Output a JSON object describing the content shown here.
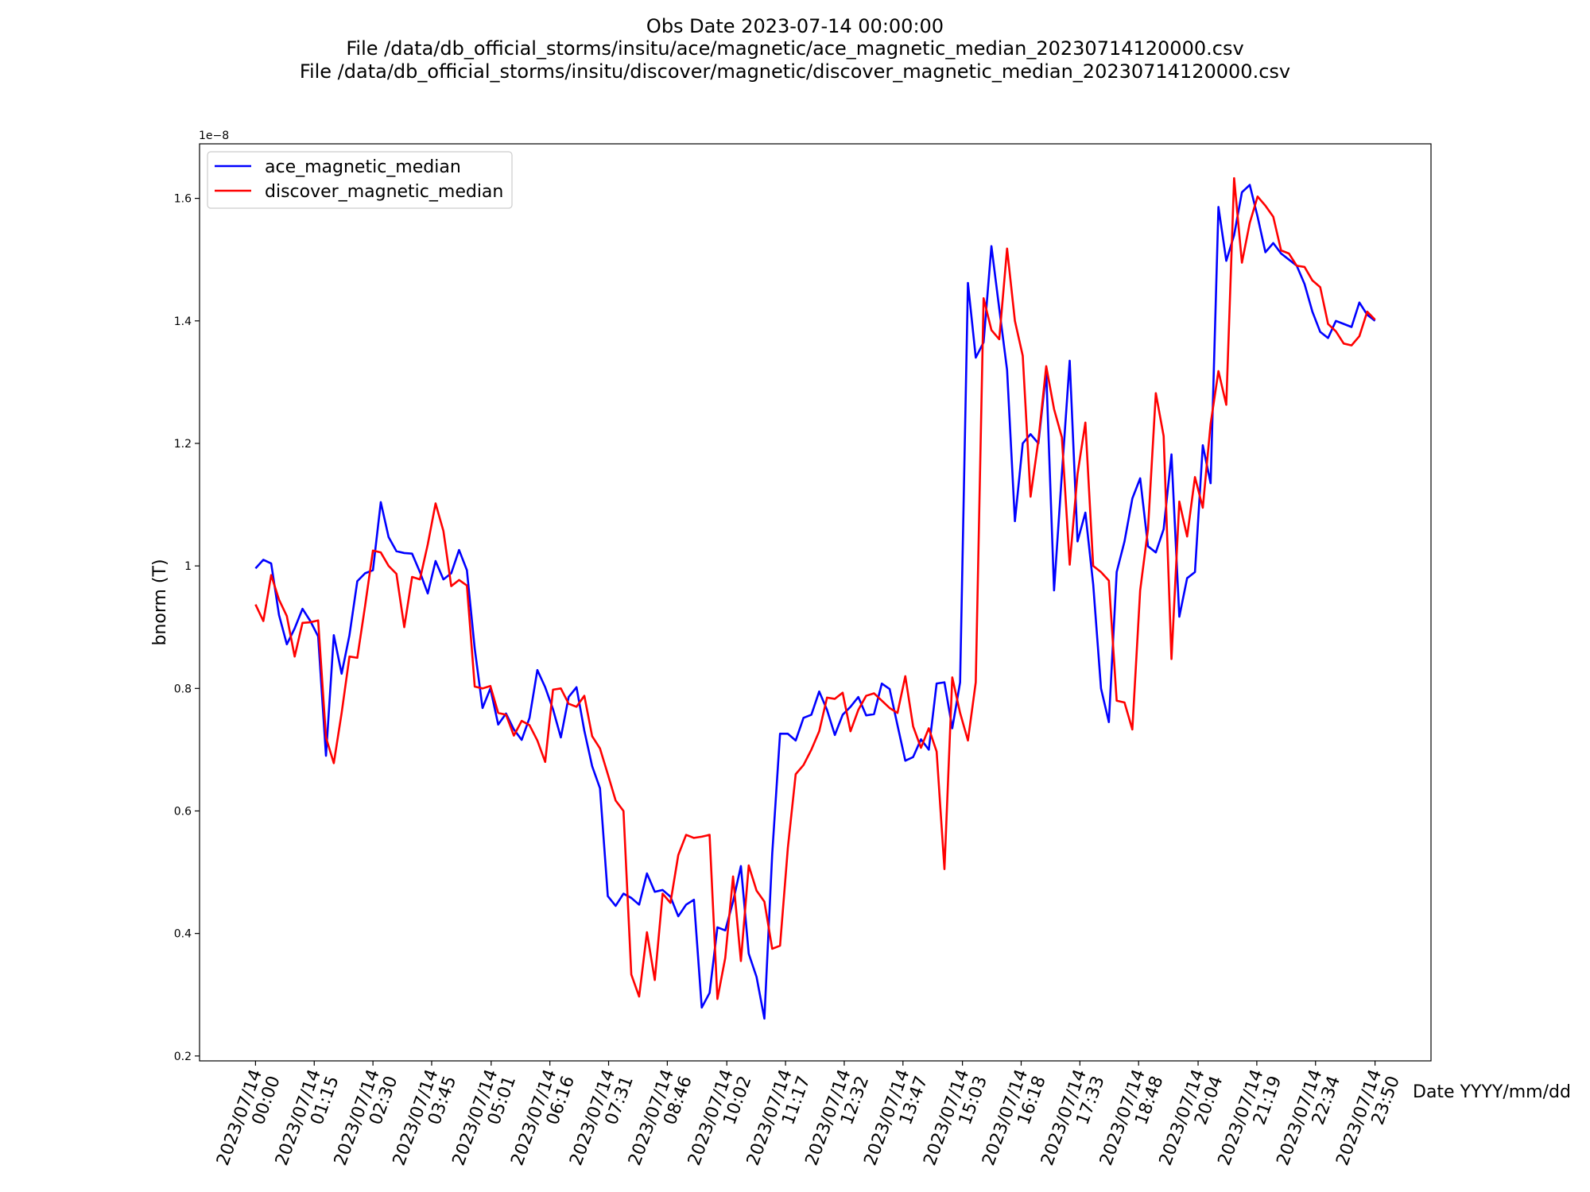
{
  "chart_data": {
    "type": "line",
    "title": [
      "Obs Date 2023-07-14 00:00:00",
      "File /data/db_official_storms/insitu/ace/magnetic/ace_magnetic_median_20230714120000.csv",
      "File /data/db_official_storms/insitu/discover/magnetic/discover_magnetic_median_20230714120000.csv"
    ],
    "x_label": "Date YYYY/mm/dd",
    "y_label": "bnorm (T)",
    "y_offset_label": "1e−8",
    "legend": "upper left",
    "x": [
      0,
      10,
      20,
      30,
      40,
      50,
      60,
      70,
      80,
      90,
      100,
      110,
      120,
      130,
      140,
      150,
      160,
      170,
      180,
      190,
      200,
      210,
      220,
      230,
      240,
      250,
      260,
      270,
      280,
      290,
      300,
      310,
      320,
      330,
      340,
      350,
      360,
      370,
      380,
      390,
      400,
      410,
      420,
      430,
      440,
      450,
      460,
      470,
      480,
      490,
      500,
      510,
      520,
      530,
      540,
      550,
      560,
      570,
      580,
      590,
      600,
      610,
      620,
      630,
      640,
      650,
      660,
      670,
      680,
      690,
      700,
      710,
      720,
      730,
      740,
      750,
      760,
      770,
      780,
      790,
      800,
      810,
      820,
      830,
      840,
      850,
      860,
      870,
      880,
      890,
      900,
      910,
      920,
      930,
      940,
      950,
      960,
      970,
      980,
      990,
      1000,
      1010,
      1020,
      1030,
      1040,
      1050,
      1060,
      1070,
      1080,
      1090,
      1100,
      1110,
      1120,
      1130,
      1140,
      1150,
      1160,
      1170,
      1180,
      1190,
      1200,
      1210,
      1220,
      1230,
      1240,
      1250,
      1260,
      1270,
      1280,
      1290,
      1300,
      1310,
      1320,
      1330,
      1340,
      1350,
      1360,
      1370,
      1380,
      1390,
      1400,
      1410,
      1420,
      1430
    ],
    "series": [
      {
        "name": "ace_magnetic_median",
        "color": "#0000ff",
        "values": [
          0.996,
          1.01,
          1.004,
          0.92,
          0.872,
          0.898,
          0.93,
          0.91,
          0.885,
          0.69,
          0.887,
          0.824,
          0.887,
          0.975,
          0.988,
          0.993,
          1.104,
          1.047,
          1.024,
          1.021,
          1.02,
          0.99,
          0.955,
          1.008,
          0.978,
          0.988,
          1.026,
          0.993,
          0.865,
          0.768,
          0.8,
          0.741,
          0.759,
          0.733,
          0.716,
          0.752,
          0.83,
          0.802,
          0.766,
          0.72,
          0.786,
          0.802,
          0.731,
          0.673,
          0.637,
          0.461,
          0.445,
          0.465,
          0.458,
          0.447,
          0.498,
          0.468,
          0.471,
          0.46,
          0.428,
          0.447,
          0.455,
          0.279,
          0.303,
          0.41,
          0.405,
          0.452,
          0.51,
          0.367,
          0.329,
          0.261,
          0.53,
          0.726,
          0.726,
          0.715,
          0.752,
          0.757,
          0.795,
          0.765,
          0.724,
          0.757,
          0.77,
          0.786,
          0.756,
          0.758,
          0.808,
          0.799,
          0.74,
          0.682,
          0.688,
          0.717,
          0.7,
          0.808,
          0.81,
          0.735,
          0.81,
          1.462,
          1.34,
          1.365,
          1.522,
          1.42,
          1.32,
          1.073,
          1.2,
          1.215,
          1.2,
          1.317,
          0.96,
          1.15,
          1.335,
          1.04,
          1.087,
          0.97,
          0.8,
          0.745,
          0.99,
          1.04,
          1.11,
          1.143,
          1.032,
          1.022,
          1.06,
          1.182,
          0.917,
          0.98,
          0.99,
          1.197,
          1.135,
          1.586,
          1.498,
          1.54,
          1.61,
          1.622,
          1.57,
          1.512,
          1.527,
          1.51,
          1.5,
          1.49,
          1.46,
          1.415,
          1.382,
          1.372,
          1.4,
          1.395,
          1.39,
          1.43,
          1.41,
          1.4
        ]
      },
      {
        "name": "discover_magnetic_median",
        "color": "#ff0000",
        "values": [
          0.937,
          0.91,
          0.985,
          0.945,
          0.918,
          0.852,
          0.907,
          0.908,
          0.911,
          0.72,
          0.678,
          0.76,
          0.852,
          0.85,
          0.935,
          1.025,
          1.022,
          1.0,
          0.987,
          0.9,
          0.982,
          0.978,
          1.035,
          1.102,
          1.057,
          0.967,
          0.977,
          0.968,
          0.803,
          0.8,
          0.804,
          0.76,
          0.757,
          0.723,
          0.747,
          0.74,
          0.715,
          0.68,
          0.798,
          0.8,
          0.775,
          0.77,
          0.788,
          0.722,
          0.702,
          0.66,
          0.617,
          0.6,
          0.333,
          0.297,
          0.402,
          0.324,
          0.465,
          0.45,
          0.528,
          0.561,
          0.556,
          0.558,
          0.561,
          0.293,
          0.36,
          0.493,
          0.355,
          0.511,
          0.47,
          0.452,
          0.375,
          0.38,
          0.54,
          0.66,
          0.675,
          0.7,
          0.73,
          0.785,
          0.783,
          0.793,
          0.73,
          0.765,
          0.788,
          0.792,
          0.78,
          0.768,
          0.76,
          0.82,
          0.738,
          0.703,
          0.735,
          0.697,
          0.505,
          0.818,
          0.76,
          0.715,
          0.81,
          1.437,
          1.385,
          1.37,
          1.518,
          1.4,
          1.343,
          1.113,
          1.205,
          1.326,
          1.256,
          1.21,
          1.002,
          1.15,
          1.234,
          1.0,
          0.99,
          0.976,
          0.78,
          0.777,
          0.733,
          0.96,
          1.06,
          1.282,
          1.212,
          0.848,
          1.105,
          1.048,
          1.145,
          1.095,
          1.232,
          1.318,
          1.263,
          1.633,
          1.495,
          1.56,
          1.603,
          1.588,
          1.57,
          1.515,
          1.51,
          1.49,
          1.488,
          1.466,
          1.455,
          1.395,
          1.383,
          1.363,
          1.36,
          1.375,
          1.415,
          1.402
        ]
      }
    ],
    "xlim": [
      -71.5,
      1501.5
    ],
    "xticks": [
      {
        "value": 0,
        "label": "2023/07/14\n00:00"
      },
      {
        "value": 75,
        "label": "2023/07/14\n01:15"
      },
      {
        "value": 150,
        "label": "2023/07/14\n02:30"
      },
      {
        "value": 225,
        "label": "2023/07/14\n03:45"
      },
      {
        "value": 301,
        "label": "2023/07/14\n05:01"
      },
      {
        "value": 376,
        "label": "2023/07/14\n06:16"
      },
      {
        "value": 451,
        "label": "2023/07/14\n07:31"
      },
      {
        "value": 526,
        "label": "2023/07/14\n08:46"
      },
      {
        "value": 602,
        "label": "2023/07/14\n10:02"
      },
      {
        "value": 677,
        "label": "2023/07/14\n11:17"
      },
      {
        "value": 752,
        "label": "2023/07/14\n12:32"
      },
      {
        "value": 827,
        "label": "2023/07/14\n13:47"
      },
      {
        "value": 903,
        "label": "2023/07/14\n15:03"
      },
      {
        "value": 978,
        "label": "2023/07/14\n16:18"
      },
      {
        "value": 1053,
        "label": "2023/07/14\n17:33"
      },
      {
        "value": 1128,
        "label": "2023/07/14\n18:48"
      },
      {
        "value": 1204,
        "label": "2023/07/14\n20:04"
      },
      {
        "value": 1279,
        "label": "2023/07/14\n21:19"
      },
      {
        "value": 1354,
        "label": "2023/07/14\n22:34"
      },
      {
        "value": 1430,
        "label": "2023/07/14\n23:50"
      }
    ],
    "ylim": [
      0.192,
      1.689
    ],
    "yticks": [
      0.2,
      0.4,
      0.6,
      0.8,
      1.0,
      1.2,
      1.4,
      1.6
    ],
    "grid": false
  }
}
